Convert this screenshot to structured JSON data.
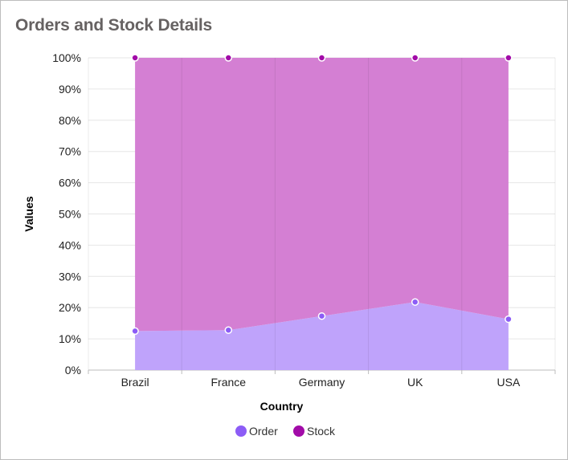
{
  "chart_data": {
    "type": "area",
    "stacking": "percent",
    "title": "Orders and Stock Details",
    "xlabel": "Country",
    "ylabel": "Values",
    "categories": [
      "Brazil",
      "France",
      "Germany",
      "UK",
      "USA"
    ],
    "ylim": [
      0,
      100
    ],
    "yticks": [
      "0%",
      "10%",
      "20%",
      "30%",
      "40%",
      "50%",
      "60%",
      "70%",
      "80%",
      "90%",
      "100%"
    ],
    "grid": true,
    "legend_position": "bottom",
    "series": [
      {
        "name": "Order",
        "color": "#8c5cf6",
        "fill": "#bfa3fb",
        "values": [
          12.5,
          12.8,
          17.3,
          21.8,
          16.3
        ]
      },
      {
        "name": "Stock",
        "color": "#a20ba8",
        "fill": "#d47fd3",
        "values": [
          87.5,
          87.2,
          82.7,
          78.2,
          83.7
        ]
      }
    ]
  }
}
